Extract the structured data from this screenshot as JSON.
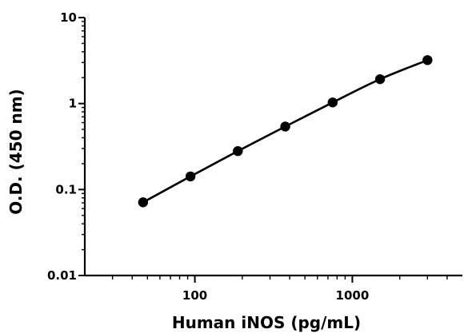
{
  "chart_data": {
    "type": "scatter",
    "title": "",
    "xlabel": "Human iNOS (pg/mL)",
    "ylabel": "O.D. (450 nm)",
    "x_scale": "log",
    "y_scale": "log",
    "xlim": [
      20,
      5000
    ],
    "ylim": [
      0.01,
      10
    ],
    "x_ticks": [
      {
        "value": 100,
        "label": "100"
      },
      {
        "value": 1000,
        "label": "1000"
      }
    ],
    "y_ticks": [
      {
        "value": 0.01,
        "label": "0.01"
      },
      {
        "value": 0.1,
        "label": "0.1"
      },
      {
        "value": 1,
        "label": "1"
      },
      {
        "value": 10,
        "label": "10"
      }
    ],
    "grid": false,
    "legend": "none",
    "series": [
      {
        "x": [
          46.9,
          93.8,
          187.5,
          375,
          750,
          1500,
          3000
        ],
        "y": [
          0.071,
          0.142,
          0.28,
          0.54,
          1.03,
          1.92,
          3.2
        ],
        "marker": "circle",
        "line": "fitted-curve",
        "color": "#000000"
      }
    ]
  }
}
